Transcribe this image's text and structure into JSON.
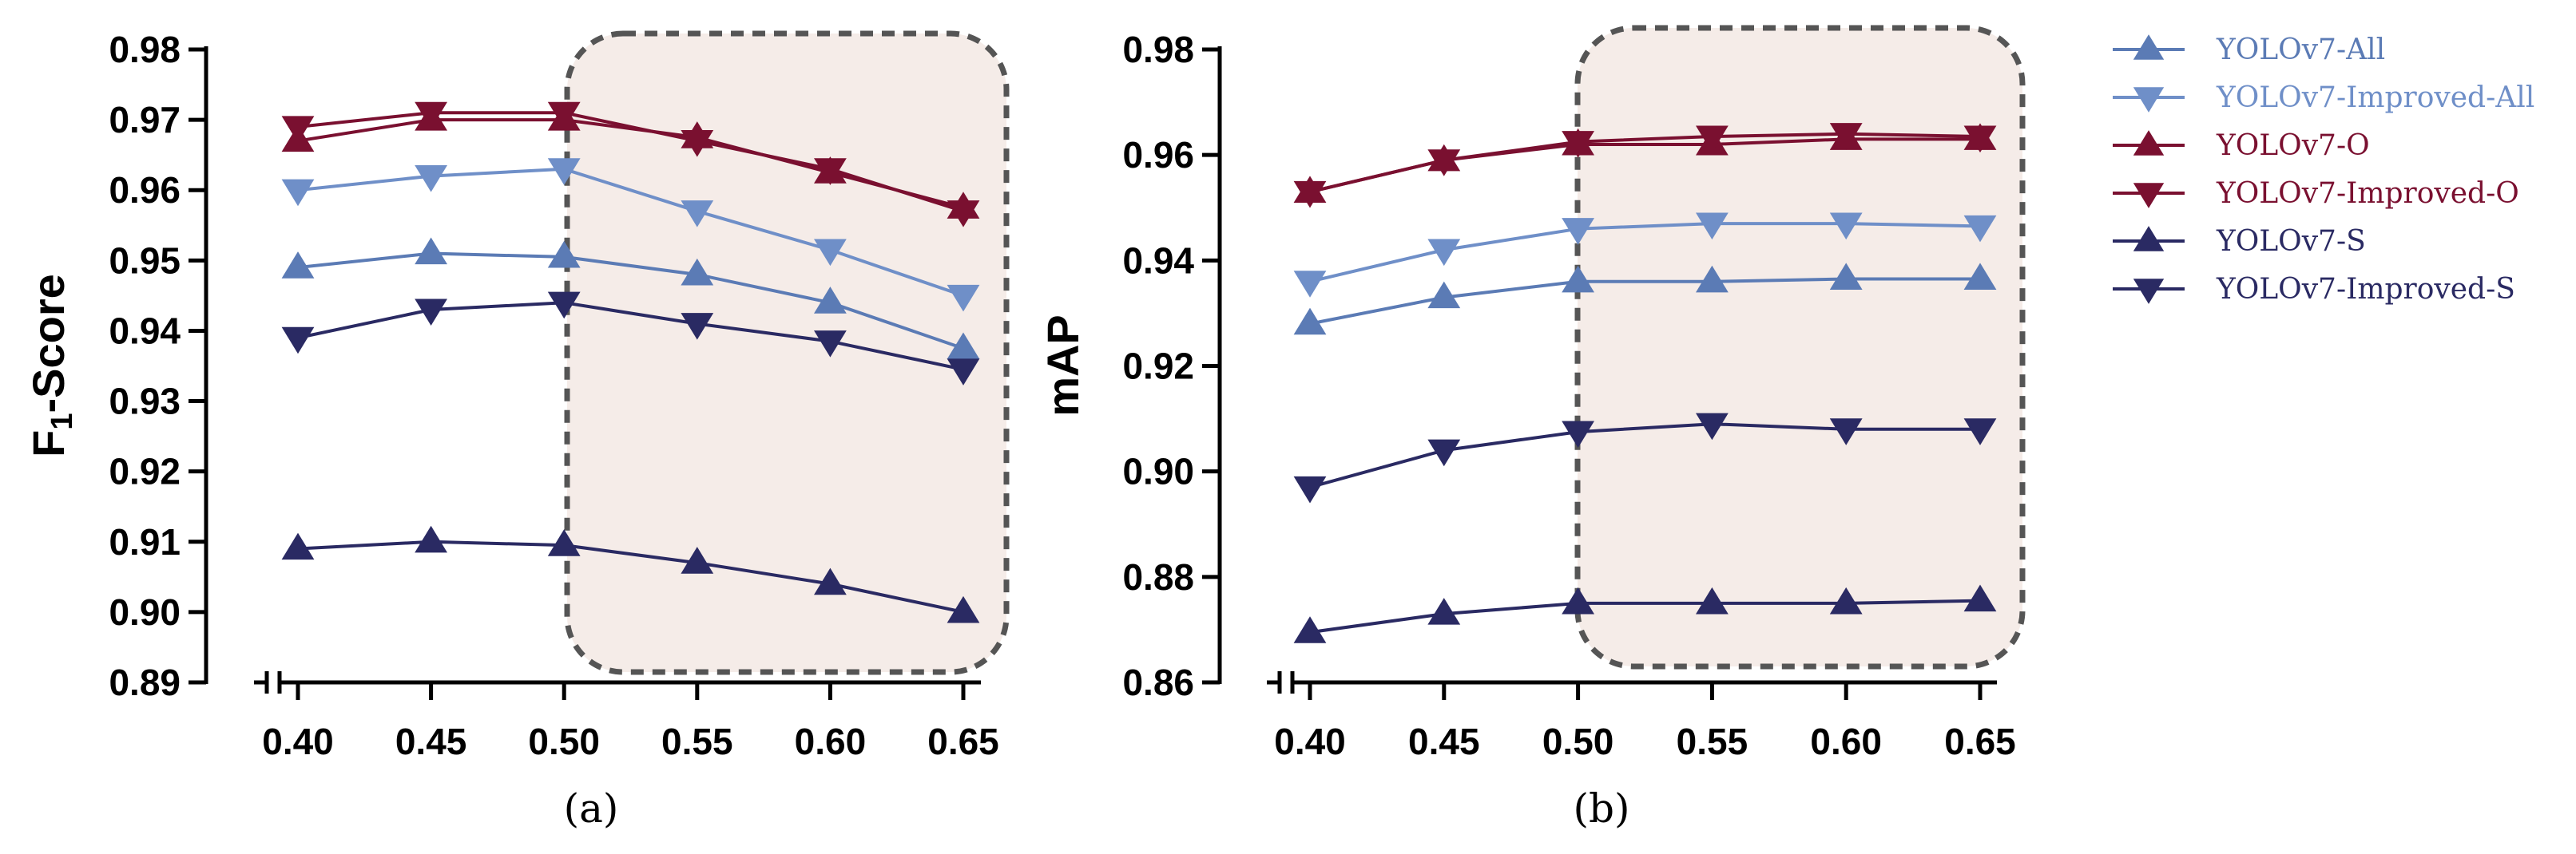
{
  "chart_data": [
    {
      "type": "line",
      "panel_label": "(a)",
      "ylabel_main": "F",
      "ylabel_sub": "1",
      "ylabel_rest": "-Score",
      "ylim": [
        0.89,
        0.98
      ],
      "yticks": [
        "0.98",
        "0.97",
        "0.96",
        "0.95",
        "0.94",
        "0.93",
        "0.92",
        "0.91",
        "0.90",
        "0.89"
      ],
      "x": [
        0.4,
        0.45,
        0.5,
        0.55,
        0.6,
        0.65
      ],
      "xticks": [
        "0.40",
        "0.45",
        "0.50",
        "0.55",
        "0.60",
        "0.65"
      ],
      "highlight_x_from": 0.5,
      "series": [
        {
          "name": "YOLOv7-All",
          "color": "#5b7bb5",
          "marker": "triangle-up",
          "values": [
            0.949,
            0.951,
            0.9505,
            0.948,
            0.944,
            0.9375
          ]
        },
        {
          "name": "YOLOv7-Improved-All",
          "color": "#6f8fc8",
          "marker": "triangle-down",
          "values": [
            0.96,
            0.962,
            0.963,
            0.957,
            0.9515,
            0.945
          ]
        },
        {
          "name": "YOLOv7-O",
          "color": "#7a1030",
          "marker": "triangle-up",
          "values": [
            0.967,
            0.97,
            0.97,
            0.9675,
            0.9625,
            0.9575
          ]
        },
        {
          "name": "YOLOv7-Improved-O",
          "color": "#7a1030",
          "marker": "triangle-down",
          "values": [
            0.969,
            0.971,
            0.971,
            0.967,
            0.963,
            0.957
          ]
        },
        {
          "name": "YOLOv7-S",
          "color": "#2a2a63",
          "marker": "triangle-up",
          "values": [
            0.909,
            0.91,
            0.9095,
            0.907,
            0.904,
            0.9
          ]
        },
        {
          "name": "YOLOv7-Improved-S",
          "color": "#2a2a63",
          "marker": "triangle-down",
          "values": [
            0.939,
            0.943,
            0.944,
            0.941,
            0.9385,
            0.9345
          ]
        }
      ]
    },
    {
      "type": "line",
      "panel_label": "(b)",
      "ylabel_main": "mAP",
      "ylabel_sub": "",
      "ylabel_rest": "",
      "ylim": [
        0.86,
        0.98
      ],
      "yticks": [
        "0.98",
        "0.96",
        "0.94",
        "0.92",
        "0.90",
        "0.88",
        "0.86"
      ],
      "x": [
        0.4,
        0.45,
        0.5,
        0.55,
        0.6,
        0.65
      ],
      "xticks": [
        "0.40",
        "0.45",
        "0.50",
        "0.55",
        "0.60",
        "0.65"
      ],
      "highlight_x_from": 0.5,
      "series": [
        {
          "name": "YOLOv7-All",
          "color": "#5b7bb5",
          "marker": "triangle-up",
          "values": [
            0.928,
            0.933,
            0.936,
            0.936,
            0.9365,
            0.9365
          ]
        },
        {
          "name": "YOLOv7-Improved-All",
          "color": "#6f8fc8",
          "marker": "triangle-down",
          "values": [
            0.936,
            0.942,
            0.946,
            0.947,
            0.947,
            0.9465
          ]
        },
        {
          "name": "YOLOv7-O",
          "color": "#7a1030",
          "marker": "triangle-up",
          "values": [
            0.953,
            0.959,
            0.962,
            0.962,
            0.963,
            0.963
          ]
        },
        {
          "name": "YOLOv7-Improved-O",
          "color": "#7a1030",
          "marker": "triangle-down",
          "values": [
            0.953,
            0.959,
            0.9625,
            0.9635,
            0.964,
            0.9635
          ]
        },
        {
          "name": "YOLOv7-S",
          "color": "#2a2a63",
          "marker": "triangle-up",
          "values": [
            0.8695,
            0.873,
            0.875,
            0.875,
            0.875,
            0.8755
          ]
        },
        {
          "name": "YOLOv7-Improved-S",
          "color": "#2a2a63",
          "marker": "triangle-down",
          "values": [
            0.897,
            0.904,
            0.9075,
            0.909,
            0.908,
            0.908
          ]
        }
      ]
    }
  ],
  "legend": [
    {
      "name": "YOLOv7-All",
      "color": "#5b7bb5",
      "marker": "triangle-up"
    },
    {
      "name": "YOLOv7-Improved-All",
      "color": "#6f8fc8",
      "marker": "triangle-down"
    },
    {
      "name": "YOLOv7-O",
      "color": "#7a1030",
      "marker": "triangle-up"
    },
    {
      "name": "YOLOv7-Improved-O",
      "color": "#7a1030",
      "marker": "triangle-down"
    },
    {
      "name": "YOLOv7-S",
      "color": "#2a2a63",
      "marker": "triangle-up"
    },
    {
      "name": "YOLOv7-Improved-S",
      "color": "#2a2a63",
      "marker": "triangle-down"
    }
  ],
  "colors": {
    "highlight_fill": "#f5ece8",
    "highlight_border": "#555555",
    "axis": "#000000"
  }
}
